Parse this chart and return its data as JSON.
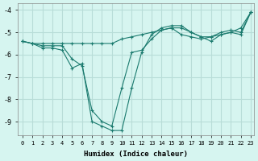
{
  "xlabel": "Humidex (Indice chaleur)",
  "background_color": "#d6f5f0",
  "grid_color": "#b8ddd8",
  "line_color": "#1a7a6e",
  "xlim": [
    -0.5,
    23.3
  ],
  "ylim": [
    -9.6,
    -3.7
  ],
  "yticks": [
    -9,
    -8,
    -7,
    -6,
    -5,
    -4
  ],
  "xticks": [
    0,
    1,
    2,
    3,
    4,
    5,
    6,
    7,
    8,
    9,
    10,
    11,
    12,
    13,
    14,
    15,
    16,
    17,
    18,
    19,
    20,
    21,
    22,
    23
  ],
  "series": [
    {
      "x": [
        0,
        1,
        2,
        3,
        4,
        5,
        6,
        7,
        8,
        9,
        10,
        11,
        12,
        13,
        14,
        15,
        16,
        17,
        18,
        19,
        20,
        21,
        22,
        23
      ],
      "y": [
        -5.4,
        -5.5,
        -5.5,
        -5.5,
        -5.5,
        -5.5,
        -5.5,
        -5.5,
        -5.5,
        -5.5,
        -5.3,
        -5.2,
        -5.1,
        -5.0,
        -4.9,
        -4.8,
        -4.8,
        -5.0,
        -5.2,
        -5.2,
        -5.0,
        -4.9,
        -5.0,
        -4.1
      ]
    },
    {
      "x": [
        0,
        1,
        2,
        3,
        4,
        5,
        6,
        7,
        8,
        9,
        10,
        11,
        12,
        13,
        14,
        15,
        16,
        17,
        18,
        19,
        20,
        21,
        22,
        23
      ],
      "y": [
        -5.4,
        -5.5,
        -5.6,
        -5.6,
        -5.6,
        -6.2,
        -6.5,
        -8.5,
        -9.0,
        -9.2,
        -7.5,
        -5.9,
        -5.8,
        -5.3,
        -4.9,
        -4.8,
        -5.1,
        -5.2,
        -5.3,
        -5.2,
        -5.1,
        -5.0,
        -5.1,
        -4.1
      ]
    },
    {
      "x": [
        0,
        1,
        2,
        3,
        4,
        5,
        6,
        7,
        8,
        9,
        10,
        11,
        12,
        13,
        14,
        15,
        16,
        17,
        18,
        19,
        20,
        21,
        22,
        23
      ],
      "y": [
        -5.4,
        -5.5,
        -5.7,
        -5.7,
        -5.8,
        -6.6,
        -6.4,
        -9.0,
        -9.2,
        -9.4,
        -9.4,
        -7.5,
        -5.9,
        -5.1,
        -4.8,
        -4.7,
        -4.7,
        -5.0,
        -5.2,
        -5.4,
        -5.1,
        -5.0,
        -4.8,
        -4.1
      ]
    }
  ]
}
